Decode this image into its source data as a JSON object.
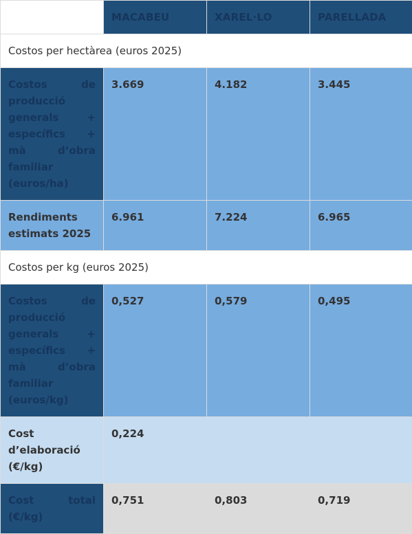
{
  "header": {
    "corner": "",
    "columns": [
      "MACABEU",
      "XAREL·LO",
      "PARELLADA"
    ]
  },
  "sections": {
    "hectare": "Costos per hectàrea (euros 2025)",
    "kg": "Costos per kg (euros 2025)"
  },
  "rows": {
    "costs_ha": {
      "label": "Costos de producció generals + específics + mà d’obra familiar (euros/ha)",
      "values": [
        "3.669",
        "4.182",
        "3.445"
      ]
    },
    "yields": {
      "label": "Rendiments estimats 2025",
      "values": [
        "6.961",
        "7.224",
        "6.965"
      ]
    },
    "costs_kg": {
      "label": "Costos de producció generals + específics + mà d’obra familiar (euros/kg)",
      "values": [
        "0,527",
        "0,579",
        "0,495"
      ]
    },
    "elaboration": {
      "label": "Cost d’elaboració (€/kg)",
      "value": "0,224"
    },
    "total": {
      "label": "Cost total (€/kg)",
      "values": [
        "0,751",
        "0,803",
        "0,719"
      ]
    }
  },
  "colors": {
    "navy": "#1f4e79",
    "mid_blue": "#77acdf",
    "light_blue": "#c6dcf1",
    "grey": "#dbdbdb"
  }
}
